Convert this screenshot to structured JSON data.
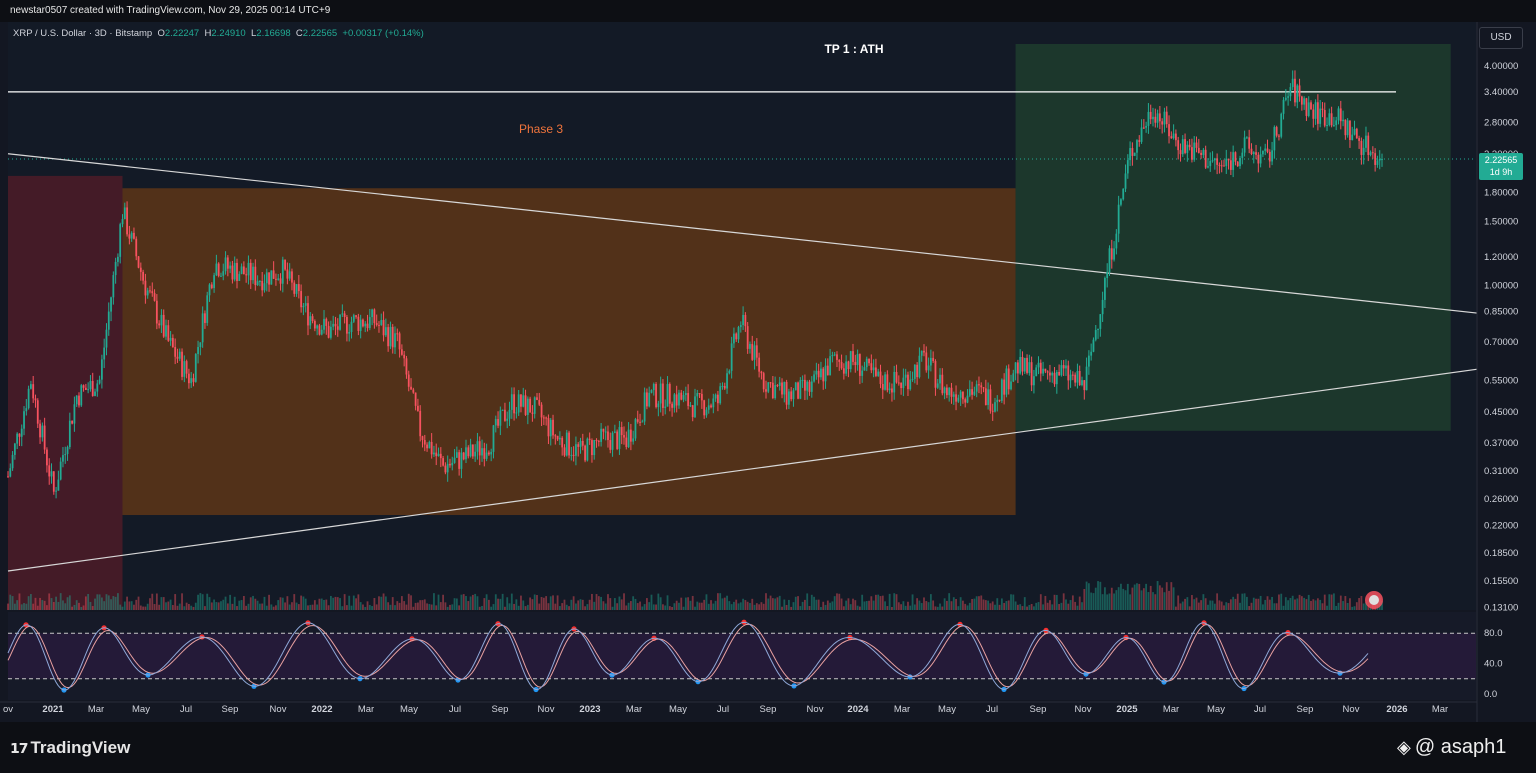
{
  "header": {
    "credit": "newstar0507 created with TradingView.com, Nov 29, 2025 00:14 UTC+9"
  },
  "symbol_bar": {
    "name": "XRP / U.S. Dollar · 3D · Bitstamp",
    "o_label": "O",
    "o_value": "2.22247",
    "h_label": "H",
    "h_value": "2.24910",
    "l_label": "L",
    "l_value": "2.16698",
    "c_label": "C",
    "c_value": "2.22565",
    "change": "+0.00317 (+0.14%)"
  },
  "currency_button": "USD",
  "last_price": {
    "value": "2.22565",
    "countdown": "1d 9h"
  },
  "colors": {
    "up": "#22ab94",
    "down": "#f7525f",
    "phase_zone": "#5a3418",
    "green_zone": "#1e3b2d",
    "left_zone": "#4a1c28",
    "oscillator_bg": "#261b3a"
  },
  "chart_data": {
    "type": "candlestick",
    "symbol": "XRP / U.S. Dollar",
    "interval": "3D",
    "exchange": "Bitstamp",
    "y_scale": "log",
    "ylim": [
      0.125,
      4.6
    ],
    "y_ticks": [
      "4.00000",
      "3.40000",
      "2.80000",
      "2.30000",
      "1.80000",
      "1.50000",
      "1.20000",
      "1.00000",
      "0.85000",
      "0.70000",
      "0.55000",
      "0.45000",
      "0.37000",
      "0.31000",
      "0.26000",
      "0.22000",
      "0.18500",
      "0.15500",
      "0.13100"
    ],
    "x_ticks": [
      {
        "label": "ov",
        "bold": false
      },
      {
        "label": "2021",
        "bold": true
      },
      {
        "label": "Mar",
        "bold": false
      },
      {
        "label": "May",
        "bold": false
      },
      {
        "label": "Jul",
        "bold": false
      },
      {
        "label": "Sep",
        "bold": false
      },
      {
        "label": "Nov",
        "bold": false
      },
      {
        "label": "2022",
        "bold": true
      },
      {
        "label": "Mar",
        "bold": false
      },
      {
        "label": "May",
        "bold": false
      },
      {
        "label": "Jul",
        "bold": false
      },
      {
        "label": "Sep",
        "bold": false
      },
      {
        "label": "Nov",
        "bold": false
      },
      {
        "label": "2023",
        "bold": true
      },
      {
        "label": "Mar",
        "bold": false
      },
      {
        "label": "May",
        "bold": false
      },
      {
        "label": "Jul",
        "bold": false
      },
      {
        "label": "Sep",
        "bold": false
      },
      {
        "label": "Nov",
        "bold": false
      },
      {
        "label": "2024",
        "bold": true
      },
      {
        "label": "Mar",
        "bold": false
      },
      {
        "label": "May",
        "bold": false
      },
      {
        "label": "Jul",
        "bold": false
      },
      {
        "label": "Sep",
        "bold": false
      },
      {
        "label": "Nov",
        "bold": false
      },
      {
        "label": "2025",
        "bold": true
      },
      {
        "label": "Mar",
        "bold": false
      },
      {
        "label": "May",
        "bold": false
      },
      {
        "label": "Jul",
        "bold": false
      },
      {
        "label": "Sep",
        "bold": false
      },
      {
        "label": "Nov",
        "bold": false
      },
      {
        "label": "2026",
        "bold": true
      },
      {
        "label": "Mar",
        "bold": false
      }
    ],
    "price_path": [
      [
        "2020-11",
        0.3
      ],
      [
        "2020-12",
        0.55
      ],
      [
        "2021-01",
        0.27
      ],
      [
        "2021-02",
        0.5
      ],
      [
        "2021-03",
        0.55
      ],
      [
        "2021-04",
        1.6
      ],
      [
        "2021-05",
        1.0
      ],
      [
        "2021-06",
        0.7
      ],
      [
        "2021-07",
        0.55
      ],
      [
        "2021-08",
        1.15
      ],
      [
        "2021-09",
        1.1
      ],
      [
        "2021-10",
        1.05
      ],
      [
        "2021-11",
        1.1
      ],
      [
        "2021-12",
        0.85
      ],
      [
        "2022-01",
        0.75
      ],
      [
        "2022-02",
        0.8
      ],
      [
        "2022-03",
        0.8
      ],
      [
        "2022-04",
        0.7
      ],
      [
        "2022-05",
        0.4
      ],
      [
        "2022-06",
        0.32
      ],
      [
        "2022-07",
        0.34
      ],
      [
        "2022-08",
        0.37
      ],
      [
        "2022-09",
        0.48
      ],
      [
        "2022-10",
        0.46
      ],
      [
        "2022-11",
        0.38
      ],
      [
        "2022-12",
        0.35
      ],
      [
        "2023-01",
        0.38
      ],
      [
        "2023-02",
        0.38
      ],
      [
        "2023-03",
        0.5
      ],
      [
        "2023-04",
        0.5
      ],
      [
        "2023-05",
        0.47
      ],
      [
        "2023-06",
        0.48
      ],
      [
        "2023-07",
        0.8
      ],
      [
        "2023-08",
        0.55
      ],
      [
        "2023-09",
        0.5
      ],
      [
        "2023-10",
        0.52
      ],
      [
        "2023-11",
        0.62
      ],
      [
        "2023-12",
        0.62
      ],
      [
        "2024-01",
        0.55
      ],
      [
        "2024-02",
        0.54
      ],
      [
        "2024-03",
        0.63
      ],
      [
        "2024-04",
        0.51
      ],
      [
        "2024-05",
        0.52
      ],
      [
        "2024-06",
        0.49
      ],
      [
        "2024-07",
        0.6
      ],
      [
        "2024-08",
        0.57
      ],
      [
        "2024-09",
        0.58
      ],
      [
        "2024-10",
        0.53
      ],
      [
        "2024-11",
        1.1
      ],
      [
        "2024-12",
        2.3
      ],
      [
        "2025-01",
        3.1
      ],
      [
        "2025-02",
        2.5
      ],
      [
        "2025-03",
        2.3
      ],
      [
        "2025-04",
        2.1
      ],
      [
        "2025-05",
        2.4
      ],
      [
        "2025-06",
        2.2
      ],
      [
        "2025-07",
        3.5
      ],
      [
        "2025-08",
        3.0
      ],
      [
        "2025-09",
        2.9
      ],
      [
        "2025-10",
        2.5
      ],
      [
        "2025-11",
        2.22565
      ]
    ],
    "ath_line": 3.4,
    "zones": [
      {
        "label": "",
        "from": "2020-11",
        "to": "2021-04",
        "top": 2.0,
        "bottom": 0.125
      },
      {
        "label": "Phase 3",
        "from": "2021-04",
        "to": "2024-07",
        "top": 1.85,
        "bottom": 0.235
      },
      {
        "label": "",
        "from": "2024-07",
        "to": "2026-02",
        "top": 4.6,
        "bottom": 0.4
      }
    ],
    "annotations": {
      "tp_label": "TP 1 : ATH",
      "phase_label": "Phase 3"
    },
    "trendlines": [
      {
        "name": "descending",
        "from": [
          "2020-11",
          2.3
        ],
        "to": [
          "2026-04",
          0.83
        ]
      },
      {
        "name": "ascending",
        "from": [
          "2020-11",
          0.165
        ],
        "to": [
          "2026-04",
          0.6
        ]
      }
    ],
    "oscillator": {
      "range": [
        0,
        100
      ],
      "levels": [
        80,
        20
      ],
      "ticks": [
        "80.0",
        "40.0",
        "0.0"
      ]
    }
  },
  "footer": {
    "brand": "TradingView",
    "handle": "@ asaph1"
  }
}
